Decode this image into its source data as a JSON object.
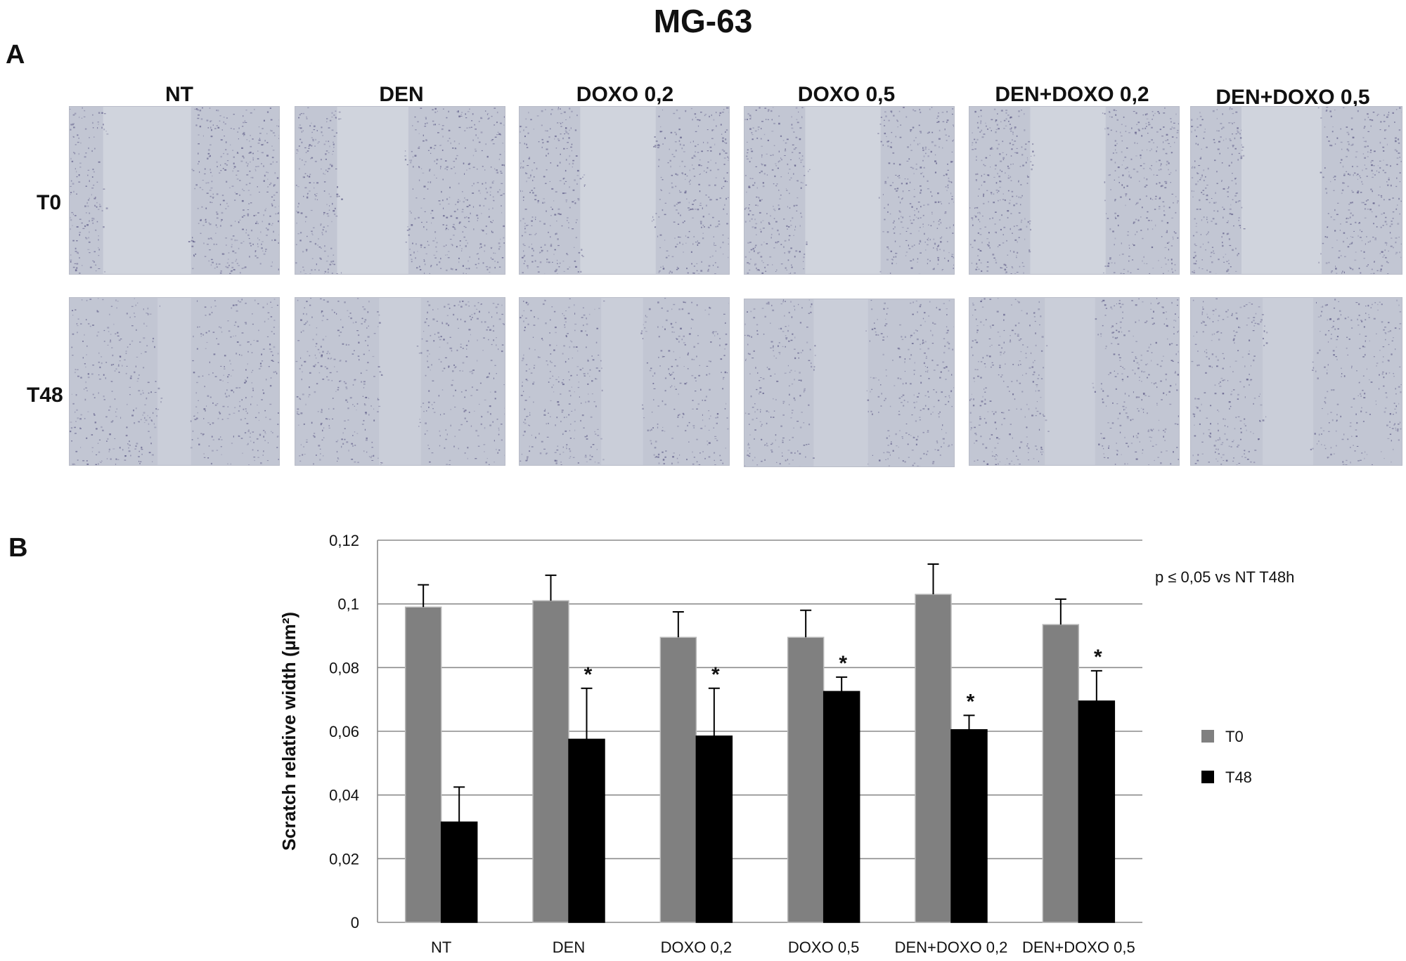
{
  "figure": {
    "title": "MG-63",
    "panel_a_label": "A",
    "panel_b_label": "B"
  },
  "panel_a": {
    "conditions": [
      "NT",
      "DEN",
      "DOXO 0,2",
      "DOXO 0,5",
      "DEN+DOXO 0,2",
      "DEN+DOXO 0,5"
    ],
    "rows": [
      "T0",
      "T48"
    ],
    "colors": {
      "background": "#c2c6d3",
      "cells": "#5d5a86",
      "gap": "#d2d6de"
    }
  },
  "chart_data": {
    "type": "bar",
    "title": "",
    "xlabel": "",
    "ylabel": "Scratch relative width (µm²)",
    "categories": [
      "NT",
      "DEN",
      "DOXO 0,2",
      "DOXO 0,5",
      "DEN+DOXO 0,2",
      "DEN+DOXO 0,5"
    ],
    "ylim": [
      0,
      0.12
    ],
    "yticks": [
      0,
      0.02,
      0.04,
      0.06,
      0.08,
      0.1,
      0.12
    ],
    "ytick_labels": [
      "0",
      "0,02",
      "0,04",
      "0,06",
      "0,08",
      "0,1",
      "0,12"
    ],
    "grid": true,
    "legend_position": "right",
    "series": [
      {
        "name": "T0",
        "color": "#808080",
        "values": [
          0.099,
          0.101,
          0.0895,
          0.0895,
          0.103,
          0.0935
        ],
        "errors": [
          0.007,
          0.008,
          0.008,
          0.0085,
          0.0095,
          0.008
        ],
        "significance": [
          "",
          "",
          "",
          "",
          "",
          ""
        ]
      },
      {
        "name": "T48",
        "color": "#000000",
        "values": [
          0.0315,
          0.0575,
          0.0585,
          0.0725,
          0.0605,
          0.0695
        ],
        "errors": [
          0.011,
          0.016,
          0.015,
          0.0045,
          0.0045,
          0.0095
        ],
        "significance": [
          "",
          "*",
          "*",
          "*",
          "*",
          "*"
        ]
      }
    ],
    "annotation": "p ≤ 0,05 vs NT T48h"
  }
}
